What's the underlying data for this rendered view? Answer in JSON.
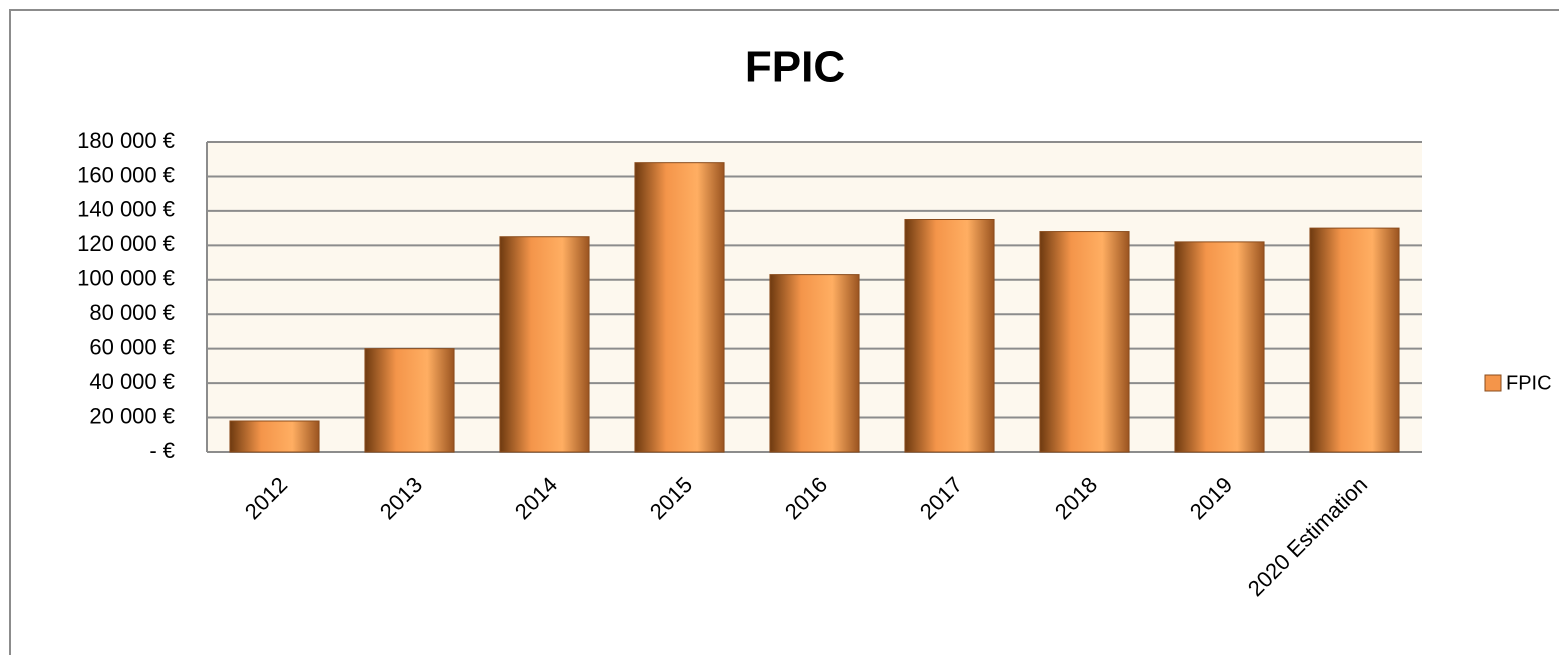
{
  "chart_data": {
    "type": "bar",
    "title": "FPIC",
    "categories": [
      "2012",
      "2013",
      "2014",
      "2015",
      "2016",
      "2017",
      "2018",
      "2019",
      "2020 Estimation"
    ],
    "series": [
      {
        "name": "FPIC",
        "color": "#f4954a",
        "values": [
          18000,
          60000,
          125000,
          168000,
          103000,
          135000,
          128000,
          122000,
          130000
        ]
      }
    ],
    "ylim": [
      0,
      180000
    ],
    "yticks": [
      {
        "value": 0,
        "label": "-   €"
      },
      {
        "value": 20000,
        "label": "20 000 €"
      },
      {
        "value": 40000,
        "label": "40 000 €"
      },
      {
        "value": 60000,
        "label": "60 000 €"
      },
      {
        "value": 80000,
        "label": "80 000 €"
      },
      {
        "value": 100000,
        "label": "100 000 €"
      },
      {
        "value": 120000,
        "label": "120 000 €"
      },
      {
        "value": 140000,
        "label": "140 000 €"
      },
      {
        "value": 160000,
        "label": "160 000 €"
      },
      {
        "value": 180000,
        "label": "180 000 €"
      }
    ],
    "grid": true,
    "legend": "right"
  }
}
